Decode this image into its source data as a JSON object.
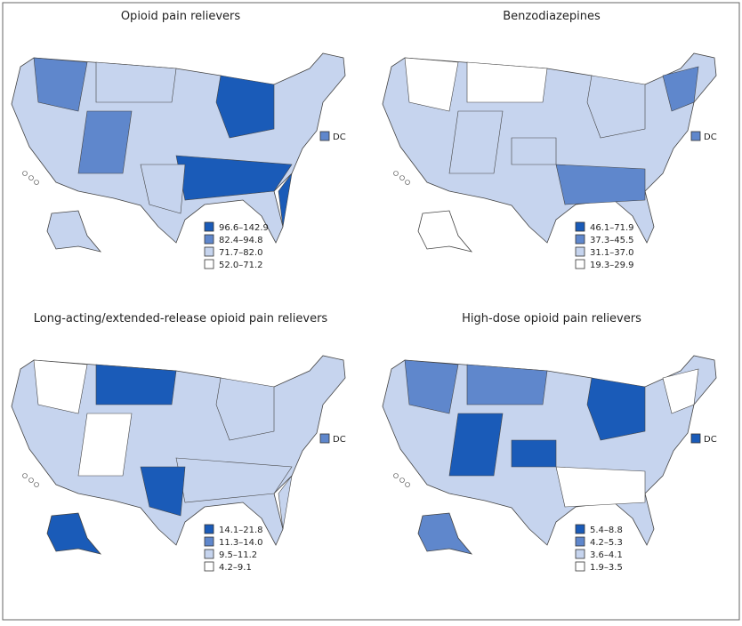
{
  "maps": [
    {
      "title": "Opioid pain relievers",
      "dc": "DC",
      "dc_class": 1,
      "legend": [
        {
          "label": "96.6–142.9",
          "color": "#1a5bb8"
        },
        {
          "label": "82.4–94.8",
          "color": "#5f87cc"
        },
        {
          "label": "71.7–82.0",
          "color": "#c6d4ee"
        },
        {
          "label": "52.0–71.2",
          "color": "#ffffff"
        }
      ]
    },
    {
      "title": "Benzodiazepines",
      "dc": "DC",
      "dc_class": 1,
      "legend": [
        {
          "label": "46.1–71.9",
          "color": "#1a5bb8"
        },
        {
          "label": "37.3–45.5",
          "color": "#5f87cc"
        },
        {
          "label": "31.1–37.0",
          "color": "#c6d4ee"
        },
        {
          "label": "19.3–29.9",
          "color": "#ffffff"
        }
      ]
    },
    {
      "title": "Long-acting/extended-release opioid pain relievers",
      "dc": "DC",
      "dc_class": 1,
      "legend": [
        {
          "label": "14.1–21.8",
          "color": "#1a5bb8"
        },
        {
          "label": "11.3–14.0",
          "color": "#5f87cc"
        },
        {
          "label": "9.5–11.2",
          "color": "#c6d4ee"
        },
        {
          "label": "4.2–9.1",
          "color": "#ffffff"
        }
      ]
    },
    {
      "title": "High-dose opioid pain relievers",
      "dc": "DC",
      "dc_class": 0,
      "legend": [
        {
          "label": "5.4–8.8",
          "color": "#1a5bb8"
        },
        {
          "label": "4.2–5.3",
          "color": "#5f87cc"
        },
        {
          "label": "3.6–4.1",
          "color": "#c6d4ee"
        },
        {
          "label": "1.9–3.5",
          "color": "#ffffff"
        }
      ]
    }
  ]
}
